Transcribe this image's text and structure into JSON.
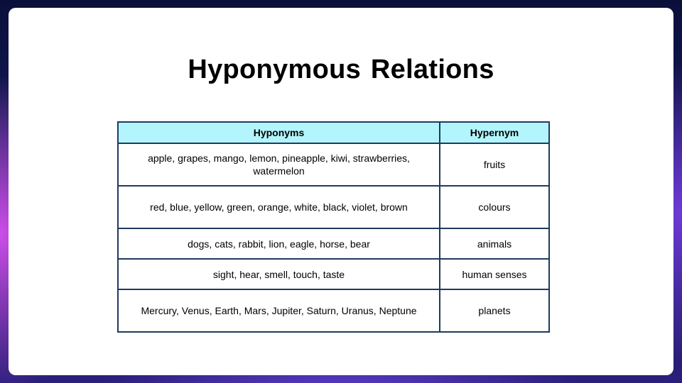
{
  "slide": {
    "title": "Hyponymous Relations"
  },
  "table": {
    "headers": {
      "hyponyms": "Hyponyms",
      "hypernym": "Hypernym"
    },
    "rows": [
      {
        "hyponyms": "apple, grapes, mango, lemon, pineapple, kiwi, strawberries, watermelon",
        "hypernym": "fruits"
      },
      {
        "hyponyms": "red, blue, yellow, green, orange, white, black, violet, brown",
        "hypernym": "colours"
      },
      {
        "hyponyms": "dogs, cats, rabbit, lion, eagle, horse, bear",
        "hypernym": "animals"
      },
      {
        "hyponyms": "sight, hear, smell, touch, taste",
        "hypernym": "human senses"
      },
      {
        "hyponyms": "Mercury, Venus, Earth, Mars, Jupiter, Saturn, Uranus, Neptune",
        "hypernym": "planets"
      }
    ]
  },
  "colors": {
    "header_background": "#b3f5fc",
    "border": "#1f3a5f",
    "card_background": "#ffffff"
  }
}
